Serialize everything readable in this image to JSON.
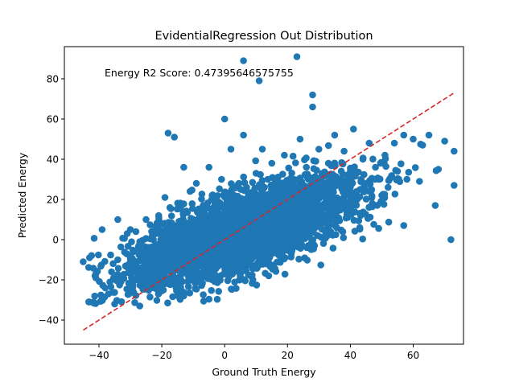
{
  "chart_data": {
    "type": "scatter",
    "title": "EvidentialRegression Out Distribution",
    "xlabel": "Ground Truth Energy",
    "ylabel": "Predicted Energy",
    "xlim": [
      -51.0,
      76.0
    ],
    "ylim": [
      -52.0,
      96.0
    ],
    "xticks": [
      -40,
      -20,
      0,
      20,
      40,
      60
    ],
    "yticks": [
      -40,
      -20,
      0,
      20,
      40,
      60,
      80
    ],
    "xtick_labels": [
      "−40",
      "−20",
      "0",
      "20",
      "40",
      "60"
    ],
    "ytick_labels": [
      "−40",
      "−20",
      "0",
      "20",
      "40",
      "60",
      "80"
    ],
    "grid": false,
    "annotation": "Energy R2 Score: 0.47395646575755",
    "series": [
      {
        "type": "scatter",
        "color": "#1f77b4",
        "points": [
          [
            -45,
            -11
          ],
          [
            -43,
            -31
          ],
          [
            -41,
            -17
          ],
          [
            -41,
            -19
          ],
          [
            -39,
            5
          ],
          [
            -38,
            -24
          ],
          [
            -37,
            -27
          ],
          [
            -36,
            -16
          ],
          [
            -35,
            -32
          ],
          [
            -34,
            -10
          ],
          [
            -34,
            10
          ],
          [
            -33,
            -21
          ],
          [
            -31,
            3
          ],
          [
            -31,
            -13
          ],
          [
            -30,
            5
          ],
          [
            -29,
            -6
          ],
          [
            -28,
            -20
          ],
          [
            -27,
            -33
          ],
          [
            -27,
            -1
          ],
          [
            -26,
            -14
          ],
          [
            -25,
            10
          ],
          [
            -24,
            -8
          ],
          [
            -23,
            2
          ],
          [
            -22,
            -23
          ],
          [
            -21,
            12
          ],
          [
            -20,
            -5
          ],
          [
            -19,
            21
          ],
          [
            -19,
            -18
          ],
          [
            -18,
            53
          ],
          [
            -17,
            8
          ],
          [
            -16,
            51
          ],
          [
            -16,
            -11
          ],
          [
            -15,
            0
          ],
          [
            -14,
            16
          ],
          [
            -13,
            36
          ],
          [
            -13,
            -28
          ],
          [
            -12,
            4
          ],
          [
            -11,
            24
          ],
          [
            -10,
            -9
          ],
          [
            -9,
            28
          ],
          [
            -8,
            14
          ],
          [
            -7,
            3
          ],
          [
            -6,
            -15
          ],
          [
            -5,
            36
          ],
          [
            -4,
            22
          ],
          [
            -3,
            8
          ],
          [
            -2,
            -5
          ],
          [
            -1,
            30
          ],
          [
            0,
            60
          ],
          [
            0,
            15
          ],
          [
            1,
            -2
          ],
          [
            2,
            45
          ],
          [
            3,
            20
          ],
          [
            4,
            7
          ],
          [
            5,
            -12
          ],
          [
            6,
            89
          ],
          [
            6,
            52
          ],
          [
            7,
            26
          ],
          [
            8,
            12
          ],
          [
            9,
            -20
          ],
          [
            10,
            33
          ],
          [
            11,
            79
          ],
          [
            11,
            5
          ],
          [
            12,
            45
          ],
          [
            13,
            19
          ],
          [
            14,
            -18
          ],
          [
            15,
            38
          ],
          [
            16,
            10
          ],
          [
            17,
            24
          ],
          [
            18,
            2
          ],
          [
            19,
            42
          ],
          [
            20,
            14
          ],
          [
            21,
            -5
          ],
          [
            22,
            30
          ],
          [
            23,
            91
          ],
          [
            23,
            18
          ],
          [
            24,
            50
          ],
          [
            25,
            8
          ],
          [
            26,
            36
          ],
          [
            27,
            22
          ],
          [
            28,
            72
          ],
          [
            28,
            66
          ],
          [
            29,
            12
          ],
          [
            30,
            45
          ],
          [
            31,
            28
          ],
          [
            32,
            4
          ],
          [
            33,
            38
          ],
          [
            34,
            20
          ],
          [
            35,
            52
          ],
          [
            36,
            10
          ],
          [
            37,
            30
          ],
          [
            38,
            44
          ],
          [
            39,
            16
          ],
          [
            40,
            34
          ],
          [
            41,
            55
          ],
          [
            42,
            24
          ],
          [
            43,
            6
          ],
          [
            44,
            40
          ],
          [
            45,
            28
          ],
          [
            46,
            48
          ],
          [
            47,
            18
          ],
          [
            48,
            36
          ],
          [
            49,
            30
          ],
          [
            50,
            22
          ],
          [
            51,
            42
          ],
          [
            52,
            26
          ],
          [
            54,
            48
          ],
          [
            55,
            34
          ],
          [
            57,
            52
          ],
          [
            58,
            30
          ],
          [
            60,
            50
          ],
          [
            62,
            29
          ],
          [
            63,
            47
          ],
          [
            65,
            52
          ],
          [
            67,
            17
          ],
          [
            68,
            35
          ],
          [
            70,
            49
          ],
          [
            72,
            0
          ],
          [
            73,
            27
          ],
          [
            73,
            44
          ]
        ]
      },
      {
        "type": "line",
        "style": "dashed",
        "color": "#d62728",
        "points": [
          [
            -45,
            -45
          ],
          [
            73,
            73
          ]
        ]
      }
    ]
  }
}
